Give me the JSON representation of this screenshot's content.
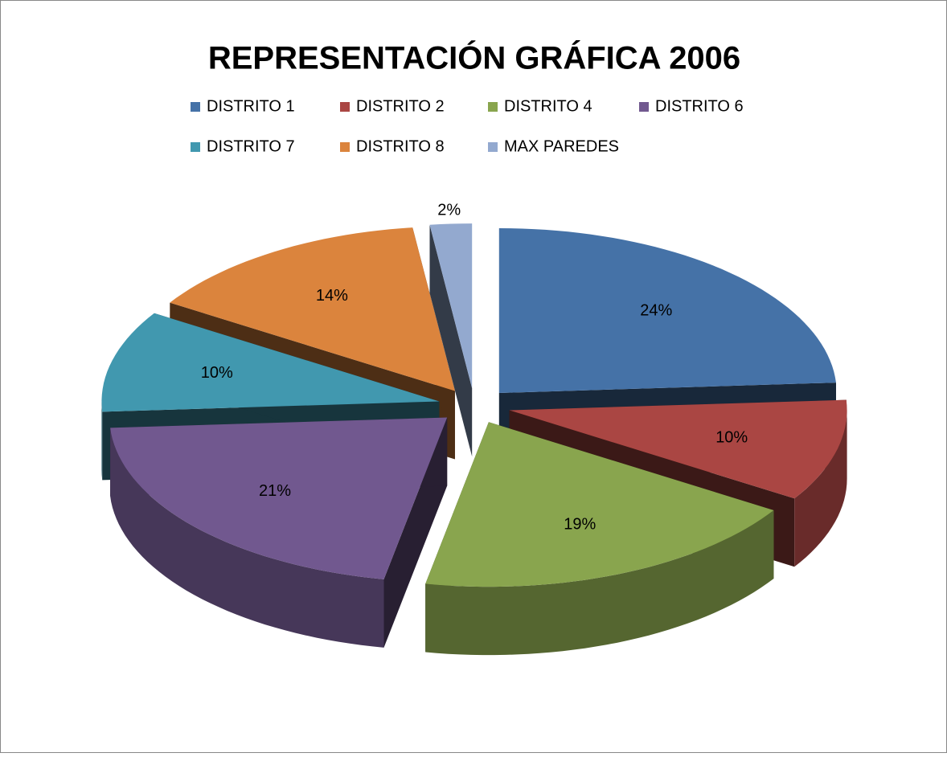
{
  "chart_data": {
    "type": "pie",
    "title": "REPRESENTACIÓN GRÁFICA  2006",
    "categories": [
      "DISTRITO 1",
      "DISTRITO 2",
      "DISTRITO 4",
      "DISTRITO 6",
      "DISTRITO 7",
      "DISTRITO 8",
      "MAX PAREDES"
    ],
    "values": [
      24,
      10,
      19,
      21,
      10,
      14,
      2
    ],
    "value_labels": [
      "24%",
      "10%",
      "19%",
      "21%",
      "10%",
      "14%",
      "2%"
    ],
    "colors": [
      "#4572a7",
      "#aa4643",
      "#89a54e",
      "#71588f",
      "#4198af",
      "#db843d",
      "#93a9cf"
    ],
    "legend": "top"
  }
}
